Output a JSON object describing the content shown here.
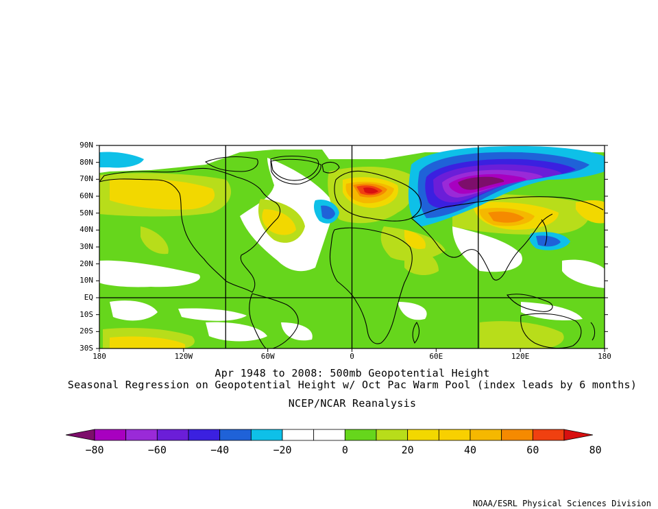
{
  "map": {
    "lat_labels": [
      "90N",
      "80N",
      "70N",
      "60N",
      "50N",
      "40N",
      "30N",
      "20N",
      "10N",
      "EQ",
      "10S",
      "20S",
      "30S"
    ],
    "lon_labels": [
      "180",
      "120W",
      "60W",
      "0",
      "60E",
      "120E",
      "180"
    ],
    "extent": {
      "lon": [
        -180,
        180
      ],
      "lat": [
        -30,
        90
      ]
    },
    "grid_lines": {
      "lon": [
        -90,
        0,
        90
      ],
      "lat": [
        0
      ]
    }
  },
  "titles": {
    "line1": "Apr 1948 to 2008: 500mb Geopotential Height",
    "line2": "Seasonal Regression on Geopotential Height  w/ Oct Pac Warm Pool (index leads by 6 months)",
    "line3": "NCEP/NCAR Reanalysis"
  },
  "colorbar": {
    "labels": [
      "−80",
      "−60",
      "−40",
      "−20",
      "0",
      "20",
      "40",
      "60",
      "80"
    ],
    "colors": [
      "#7d0e6b",
      "#a800c0",
      "#9a2ad8",
      "#6b1ed8",
      "#3b20e0",
      "#1f62d8",
      "#0ec0e8",
      "#ffffff",
      "#ffffff",
      "#66d61c",
      "#b8dd1a",
      "#f2d800",
      "#f8d000",
      "#f5b800",
      "#f58a00",
      "#f04010",
      "#d81010"
    ]
  },
  "credit": "NOAA/ESRL Physical Sciences Division"
}
